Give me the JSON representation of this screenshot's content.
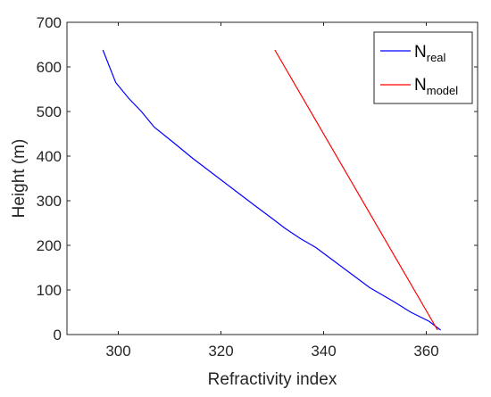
{
  "chart_data": {
    "type": "line",
    "title": "",
    "xlabel": "Refractivity index",
    "ylabel": "Height (m)",
    "xlim": [
      290,
      370
    ],
    "ylim": [
      0,
      700
    ],
    "xticks": [
      300,
      320,
      340,
      360
    ],
    "yticks": [
      0,
      100,
      200,
      300,
      400,
      500,
      600,
      700
    ],
    "grid": false,
    "legend_position": "top-right",
    "series": [
      {
        "name": "N",
        "name_subscript": "real",
        "color": "#0000ff",
        "x": [
          362.8,
          360.5,
          357.0,
          353.5,
          349.0,
          345.5,
          342.0,
          338.5,
          335.5,
          332.5,
          330.0,
          326.5,
          322.5,
          318.5,
          314.5,
          310.8,
          307.0,
          304.5,
          302.0,
          299.5,
          297.0
        ],
        "y": [
          10,
          30,
          50,
          75,
          105,
          135,
          165,
          195,
          215,
          238,
          260,
          290,
          325,
          360,
          395,
          430,
          465,
          500,
          530,
          565,
          638
        ]
      },
      {
        "name": "N",
        "name_subscript": "model",
        "color": "#ff0000",
        "x": [
          362.2,
          330.5
        ],
        "y": [
          10,
          638
        ]
      }
    ]
  }
}
